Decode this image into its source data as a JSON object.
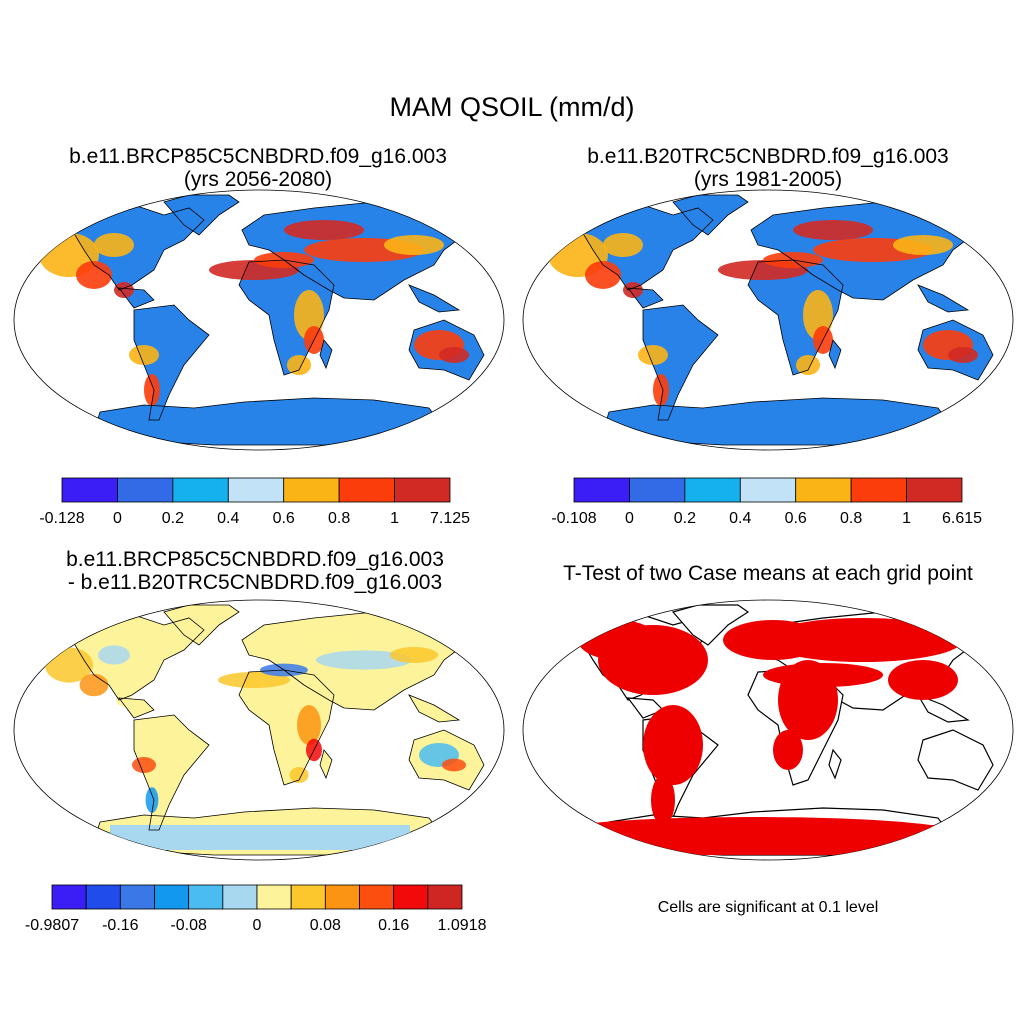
{
  "title": "MAM QSOIL (mm/d)",
  "panels": [
    {
      "id": "case1",
      "title_line1": "b.e11.BRCP85C5CNBDRD.f09_g16.003",
      "title_line2": "(yrs 2056-2080)"
    },
    {
      "id": "case2",
      "title_line1": "b.e11.B20TRC5CNBDRD.f09_g16.003",
      "title_line2": "(yrs 1981-2005)"
    },
    {
      "id": "diff",
      "title_line1": "b.e11.BRCP85C5CNBDRD.f09_g16.003",
      "title_line2": "- b.e11.B20TRC5CNBDRD.f09_g16.003"
    },
    {
      "id": "ttest",
      "title_line1": "T-Test of two Case means at each grid point"
    }
  ],
  "colorbars": [
    {
      "id": "case1",
      "colors": [
        "#3a1ef5",
        "#336ae6",
        "#14b1ee",
        "#c2e3f7",
        "#fbb416",
        "#fb3d0c",
        "#d12a24"
      ],
      "labels": [
        "-0.128",
        "0",
        "0.2",
        "0.4",
        "0.6",
        "0.8",
        "1",
        "7.125"
      ]
    },
    {
      "id": "case2",
      "colors": [
        "#3a1ef5",
        "#336ae6",
        "#14b1ee",
        "#c2e3f7",
        "#fbb416",
        "#fb3d0c",
        "#d12a24"
      ],
      "labels": [
        "-0.108",
        "0",
        "0.2",
        "0.4",
        "0.6",
        "0.8",
        "1",
        "6.615"
      ]
    },
    {
      "id": "diff",
      "colors": [
        "#3b1ef5",
        "#1f4cea",
        "#3a78e8",
        "#1398f0",
        "#4bbcf1",
        "#a8d7f0",
        "#fdf39a",
        "#fcc72c",
        "#fb9412",
        "#fb4e0f",
        "#f2090a",
        "#cf2624"
      ],
      "labels": [
        "-0.9807",
        "-0.16",
        "-0.08",
        "0",
        "0.08",
        "0.16",
        "1.0918"
      ]
    }
  ],
  "significance_note": "Cells are significant at 0.1 level",
  "colors": {
    "significant": "#ee0000",
    "coast": "#000000"
  }
}
